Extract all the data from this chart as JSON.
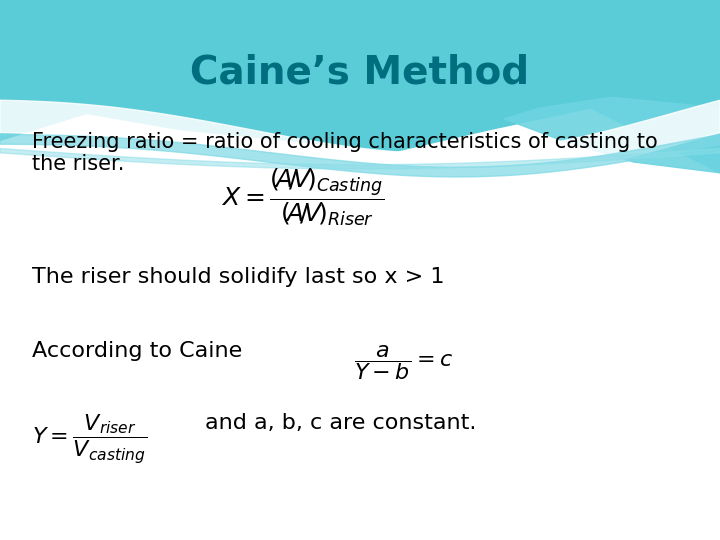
{
  "title": "Caine’s Method",
  "title_color": "#006e7f",
  "title_fontsize": 28,
  "text_color": "#000000",
  "body_fontsize": 15,
  "line1a": "Freezing ratio = ratio of cooling characteristics of casting to",
  "line1b": "the riser.",
  "line2": "The riser should solidify last so x > 1",
  "line3": "According to Caine",
  "line4_suffix": "and a, b, c are constant.",
  "wave_colors": [
    "#5dd0dc",
    "#7edce8",
    "#a8ecf4"
  ],
  "bg_color": "#ffffff"
}
